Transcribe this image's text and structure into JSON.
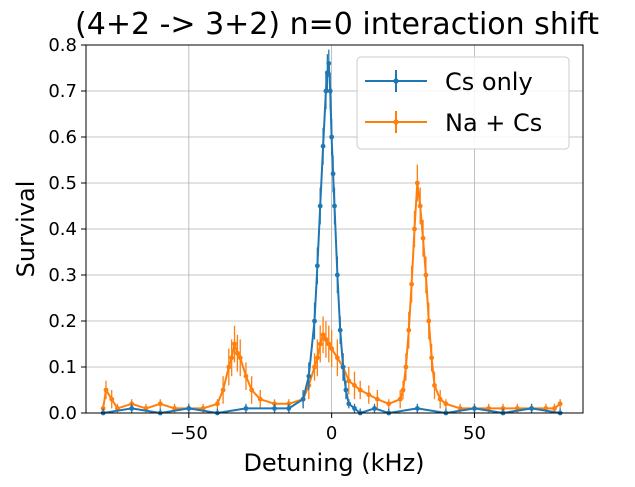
{
  "chart_data": {
    "type": "line",
    "title": "(4+2 -> 3+2) n=0 interaction shift",
    "xlabel": "Detuning (kHz)",
    "ylabel": "Survival",
    "xlim": [
      -86,
      88
    ],
    "ylim": [
      0,
      0.8
    ],
    "xticks": [
      -50,
      0,
      50
    ],
    "xtick_labels": [
      "−50",
      "0",
      "50"
    ],
    "yticks": [
      0.0,
      0.1,
      0.2,
      0.3,
      0.4,
      0.5,
      0.6,
      0.7,
      0.8
    ],
    "ytick_labels": [
      "0.0",
      "0.1",
      "0.2",
      "0.3",
      "0.4",
      "0.5",
      "0.6",
      "0.7",
      "0.8"
    ],
    "grid": true,
    "legend_position": "top-right",
    "error_bars": true,
    "series": [
      {
        "name": "Cs only",
        "color": "#1f77b4",
        "x": [
          -80,
          -70,
          -60,
          -50,
          -40,
          -30,
          -20,
          -15,
          -10,
          -8,
          -6,
          -5,
          -4,
          -3,
          -2,
          -1.5,
          -1,
          -0.5,
          0,
          0.5,
          1,
          2,
          3,
          4,
          5,
          6,
          8,
          10,
          15,
          20,
          30,
          40,
          50,
          60,
          70,
          80
        ],
        "y": [
          0.0,
          0.01,
          0.0,
          0.01,
          0.0,
          0.01,
          0.01,
          0.01,
          0.03,
          0.08,
          0.2,
          0.32,
          0.45,
          0.58,
          0.7,
          0.74,
          0.76,
          0.7,
          0.6,
          0.52,
          0.45,
          0.3,
          0.18,
          0.1,
          0.05,
          0.02,
          0.01,
          0.0,
          0.01,
          0.0,
          0.01,
          0.0,
          0.01,
          0.0,
          0.01,
          0.0
        ],
        "yerr": [
          0.01,
          0.01,
          0.01,
          0.01,
          0.01,
          0.01,
          0.01,
          0.01,
          0.02,
          0.03,
          0.04,
          0.04,
          0.04,
          0.04,
          0.04,
          0.04,
          0.03,
          0.04,
          0.04,
          0.04,
          0.04,
          0.04,
          0.03,
          0.03,
          0.02,
          0.01,
          0.01,
          0.01,
          0.01,
          0.01,
          0.01,
          0.01,
          0.01,
          0.01,
          0.01,
          0.01
        ]
      },
      {
        "name": "Na + Cs",
        "color": "#ff7f0e",
        "x": [
          -80,
          -79,
          -77,
          -75,
          -70,
          -65,
          -60,
          -55,
          -50,
          -45,
          -40,
          -38,
          -36,
          -35,
          -34,
          -33,
          -32,
          -30,
          -28,
          -25,
          -20,
          -15,
          -10,
          -8,
          -6,
          -5,
          -4,
          -3,
          -2,
          -1,
          0,
          2,
          4,
          6,
          8,
          10,
          13,
          16,
          20,
          24,
          25,
          26,
          27,
          28,
          29,
          30,
          31,
          32,
          33,
          34,
          35,
          36,
          38,
          40,
          45,
          50,
          55,
          60,
          65,
          70,
          75,
          78,
          80
        ],
        "y": [
          0.01,
          0.05,
          0.03,
          0.01,
          0.02,
          0.01,
          0.02,
          0.01,
          0.01,
          0.01,
          0.02,
          0.05,
          0.1,
          0.12,
          0.15,
          0.13,
          0.12,
          0.08,
          0.05,
          0.03,
          0.02,
          0.02,
          0.03,
          0.06,
          0.1,
          0.12,
          0.15,
          0.17,
          0.16,
          0.15,
          0.14,
          0.12,
          0.1,
          0.07,
          0.06,
          0.05,
          0.04,
          0.03,
          0.02,
          0.03,
          0.05,
          0.1,
          0.18,
          0.28,
          0.4,
          0.5,
          0.45,
          0.38,
          0.3,
          0.2,
          0.12,
          0.06,
          0.03,
          0.02,
          0.01,
          0.01,
          0.01,
          0.01,
          0.01,
          0.01,
          0.01,
          0.01,
          0.02
        ],
        "yerr": [
          0.01,
          0.02,
          0.02,
          0.01,
          0.01,
          0.01,
          0.01,
          0.01,
          0.01,
          0.01,
          0.01,
          0.03,
          0.04,
          0.04,
          0.04,
          0.04,
          0.04,
          0.03,
          0.03,
          0.02,
          0.01,
          0.01,
          0.02,
          0.03,
          0.03,
          0.04,
          0.04,
          0.04,
          0.04,
          0.04,
          0.04,
          0.04,
          0.03,
          0.03,
          0.03,
          0.02,
          0.02,
          0.02,
          0.01,
          0.02,
          0.02,
          0.03,
          0.04,
          0.04,
          0.04,
          0.04,
          0.04,
          0.04,
          0.04,
          0.04,
          0.03,
          0.03,
          0.02,
          0.01,
          0.01,
          0.01,
          0.01,
          0.01,
          0.01,
          0.01,
          0.01,
          0.01,
          0.01
        ]
      }
    ]
  }
}
